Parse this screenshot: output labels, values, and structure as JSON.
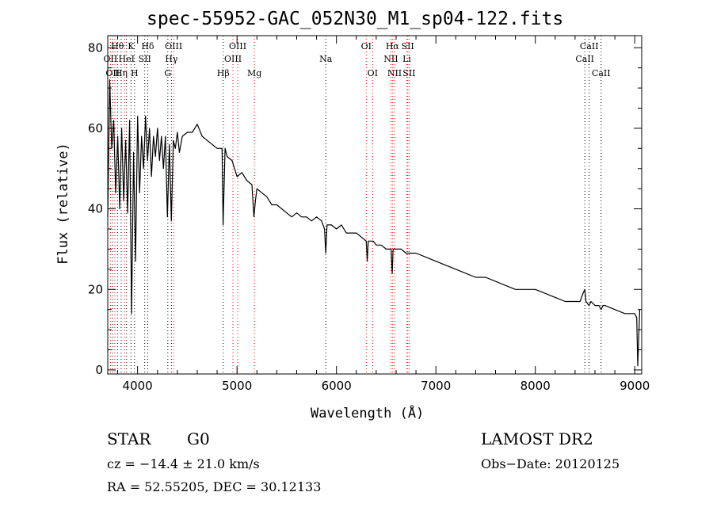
{
  "chart_data": {
    "type": "line",
    "title": "spec-55952-GAC_052N30_M1_sp04-122.fits",
    "xlabel": "Wavelength (Å)",
    "ylabel": "Flux (relative)",
    "xlim": [
      3700,
      9070
    ],
    "ylim": [
      -1,
      83
    ],
    "xticks": [
      4000,
      5000,
      6000,
      7000,
      8000,
      9000
    ],
    "yticks": [
      0,
      20,
      40,
      60,
      80
    ],
    "grid": false,
    "series": [
      {
        "color": "#000000",
        "x": [
          3700,
          3720,
          3740,
          3760,
          3780,
          3800,
          3820,
          3840,
          3860,
          3880,
          3900,
          3920,
          3940,
          3960,
          3980,
          4000,
          4020,
          4040,
          4060,
          4080,
          4100,
          4120,
          4140,
          4160,
          4180,
          4200,
          4220,
          4240,
          4260,
          4280,
          4300,
          4320,
          4340,
          4360,
          4380,
          4400,
          4420,
          4450,
          4500,
          4550,
          4600,
          4650,
          4700,
          4750,
          4800,
          4850,
          4860,
          4880,
          4900,
          4950,
          5000,
          5050,
          5100,
          5150,
          5170,
          5185,
          5200,
          5250,
          5300,
          5350,
          5400,
          5450,
          5500,
          5550,
          5600,
          5650,
          5700,
          5750,
          5800,
          5850,
          5880,
          5893,
          5905,
          5950,
          6000,
          6050,
          6100,
          6150,
          6200,
          6250,
          6300,
          6310,
          6320,
          6340,
          6370,
          6400,
          6450,
          6500,
          6550,
          6560,
          6563,
          6570,
          6600,
          6650,
          6700,
          6750,
          6800,
          6900,
          7000,
          7100,
          7200,
          7300,
          7400,
          7500,
          7600,
          7700,
          7800,
          7900,
          8000,
          8100,
          8200,
          8300,
          8400,
          8450,
          8480,
          8498,
          8510,
          8540,
          8560,
          8600,
          8640,
          8662,
          8680,
          8700,
          8800,
          8900,
          8960,
          9000,
          9020,
          9030,
          9050
        ],
        "y": [
          38,
          72,
          55,
          62,
          44,
          58,
          40,
          60,
          42,
          57,
          39,
          62,
          14,
          54,
          27,
          63,
          44,
          58,
          50,
          63,
          52,
          60,
          48,
          58,
          53,
          60,
          52,
          58,
          50,
          58,
          38,
          56,
          37,
          57,
          55,
          59,
          54,
          58,
          59,
          59,
          61,
          58,
          57,
          56,
          55,
          55,
          36,
          55,
          53,
          52,
          48,
          49,
          47,
          46,
          38,
          42,
          45,
          44,
          43,
          41,
          41,
          40,
          39,
          38,
          39,
          38,
          38,
          37,
          38,
          37,
          35,
          29,
          36,
          36,
          35,
          36,
          34,
          34,
          34,
          33,
          32,
          27,
          32,
          32,
          32,
          31,
          31,
          30,
          30,
          24,
          25,
          30,
          30,
          30,
          29,
          29,
          29,
          28,
          27,
          26,
          25,
          24,
          23,
          23,
          22,
          21,
          20,
          20,
          20,
          19,
          18,
          17,
          17,
          17,
          19,
          20,
          17,
          16,
          17,
          16,
          16,
          15,
          16,
          16,
          15,
          14,
          14,
          14,
          13,
          1,
          15
        ]
      }
    ],
    "lines": [
      {
        "wavelength": 3727,
        "color": "#ff0000",
        "label": "OII",
        "row": 1
      },
      {
        "wavelength": 3750,
        "color": "#000000",
        "label": "OII",
        "row": 2
      },
      {
        "wavelength": 3771,
        "color": "#ff0000",
        "label": "",
        "row": 0
      },
      {
        "wavelength": 3798,
        "color": "#000000",
        "label": "Hθ",
        "row": 0
      },
      {
        "wavelength": 3835,
        "color": "#000000",
        "label": "Hη",
        "row": 2
      },
      {
        "wavelength": 3869,
        "color": "#ff0000",
        "label": "",
        "row": 0
      },
      {
        "wavelength": 3889,
        "color": "#000000",
        "label": "HeI",
        "row": 1
      },
      {
        "wavelength": 3934,
        "color": "#000000",
        "label": "K",
        "row": 0
      },
      {
        "wavelength": 3969,
        "color": "#000000",
        "label": "H",
        "row": 2
      },
      {
        "wavelength": 4072,
        "color": "#000000",
        "label": "SII",
        "row": 1
      },
      {
        "wavelength": 4102,
        "color": "#000000",
        "label": "Hδ",
        "row": 0
      },
      {
        "wavelength": 4304,
        "color": "#000000",
        "label": "G",
        "row": 2
      },
      {
        "wavelength": 4340,
        "color": "#000000",
        "label": "Hγ",
        "row": 1
      },
      {
        "wavelength": 4363,
        "color": "#ff0000",
        "label": "OIII",
        "row": 0
      },
      {
        "wavelength": 4861,
        "color": "#000000",
        "label": "Hβ",
        "row": 2
      },
      {
        "wavelength": 4959,
        "color": "#ff0000",
        "label": "OIII",
        "row": 1
      },
      {
        "wavelength": 5007,
        "color": "#ff0000",
        "label": "OIII",
        "row": 0
      },
      {
        "wavelength": 5175,
        "color": "#ff0000",
        "label": "Mg",
        "row": 2
      },
      {
        "wavelength": 5893,
        "color": "#000000",
        "label": "Na",
        "row": 1
      },
      {
        "wavelength": 6300,
        "color": "#ff0000",
        "label": "OI",
        "row": 0
      },
      {
        "wavelength": 6364,
        "color": "#ff0000",
        "label": "OI",
        "row": 2
      },
      {
        "wavelength": 6548,
        "color": "#ff0000",
        "label": "NII",
        "row": 1
      },
      {
        "wavelength": 6563,
        "color": "#ff0000",
        "label": "Hα",
        "row": 0
      },
      {
        "wavelength": 6584,
        "color": "#ff0000",
        "label": "NII",
        "row": 2
      },
      {
        "wavelength": 6708,
        "color": "#ff0000",
        "label": "Li",
        "row": 1
      },
      {
        "wavelength": 6717,
        "color": "#ff0000",
        "label": "SII",
        "row": 0
      },
      {
        "wavelength": 6731,
        "color": "#ff0000",
        "label": "SII",
        "row": 2
      },
      {
        "wavelength": 8498,
        "color": "#000000",
        "label": "CaII",
        "row": 1
      },
      {
        "wavelength": 8542,
        "color": "#000000",
        "label": "CaII",
        "row": 0
      },
      {
        "wavelength": 8662,
        "color": "#000000",
        "label": "CaII",
        "row": 2
      }
    ]
  },
  "footer": {
    "object_class": "STAR",
    "subclass": "G0",
    "survey": "LAMOST DR2",
    "cz": "cz = −14.4 ± 21.0 km/s",
    "obs_date": "Obs−Date: 20120125",
    "coords": "RA =  52.55205, DEC =  30.12133"
  }
}
